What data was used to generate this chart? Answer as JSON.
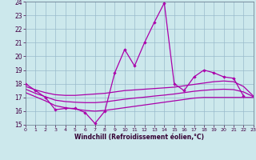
{
  "background_color": "#cce8ec",
  "grid_color": "#99bbcc",
  "line_color": "#aa00aa",
  "xlabel": "Windchill (Refroidissement éolien,°C)",
  "xlim": [
    0,
    23
  ],
  "ylim": [
    15,
    24
  ],
  "yticks": [
    15,
    16,
    17,
    18,
    19,
    20,
    21,
    22,
    23,
    24
  ],
  "xticks": [
    0,
    1,
    2,
    3,
    4,
    5,
    6,
    7,
    8,
    9,
    10,
    11,
    12,
    13,
    14,
    15,
    16,
    17,
    18,
    19,
    20,
    21,
    22,
    23
  ],
  "spiky": {
    "x": [
      0,
      1,
      2,
      3,
      4,
      5,
      6,
      7,
      8,
      9,
      10,
      11,
      12,
      13,
      14,
      15,
      16,
      17,
      18,
      19,
      20,
      21,
      22
    ],
    "y": [
      18.0,
      17.5,
      17.0,
      16.1,
      16.2,
      16.2,
      15.9,
      15.1,
      16.0,
      18.8,
      20.5,
      19.3,
      21.0,
      22.5,
      23.9,
      18.0,
      17.5,
      18.5,
      19.0,
      18.8,
      18.5,
      18.4,
      17.1
    ]
  },
  "upper_smooth": {
    "x": [
      0,
      1,
      2,
      3,
      4,
      5,
      6,
      7,
      8,
      9,
      10,
      11,
      12,
      13,
      14,
      15,
      16,
      17,
      18,
      19,
      20,
      21,
      22,
      23
    ],
    "y": [
      17.8,
      17.55,
      17.35,
      17.2,
      17.15,
      17.15,
      17.2,
      17.25,
      17.3,
      17.4,
      17.5,
      17.55,
      17.6,
      17.65,
      17.7,
      17.75,
      17.85,
      17.95,
      18.05,
      18.15,
      18.2,
      18.15,
      17.8,
      17.1
    ]
  },
  "lower_smooth": {
    "x": [
      0,
      1,
      2,
      3,
      4,
      5,
      6,
      7,
      8,
      9,
      10,
      11,
      12,
      13,
      14,
      15,
      16,
      17,
      18,
      19,
      20,
      21,
      22,
      23
    ],
    "y": [
      17.35,
      17.05,
      16.75,
      16.4,
      16.25,
      16.15,
      16.05,
      16.0,
      16.05,
      16.15,
      16.25,
      16.35,
      16.45,
      16.55,
      16.65,
      16.75,
      16.85,
      16.95,
      17.0,
      17.0,
      17.0,
      17.0,
      17.0,
      17.0
    ]
  },
  "mid_smooth": {
    "x": [
      0,
      1,
      2,
      3,
      4,
      5,
      6,
      7,
      8,
      9,
      10,
      11,
      12,
      13,
      14,
      15,
      16,
      17,
      18,
      19,
      20,
      21,
      22,
      23
    ],
    "y": [
      17.6,
      17.3,
      17.05,
      16.8,
      16.7,
      16.65,
      16.62,
      16.62,
      16.67,
      16.77,
      16.87,
      16.95,
      17.02,
      17.1,
      17.17,
      17.25,
      17.35,
      17.45,
      17.52,
      17.57,
      17.6,
      17.57,
      17.4,
      17.05
    ]
  }
}
